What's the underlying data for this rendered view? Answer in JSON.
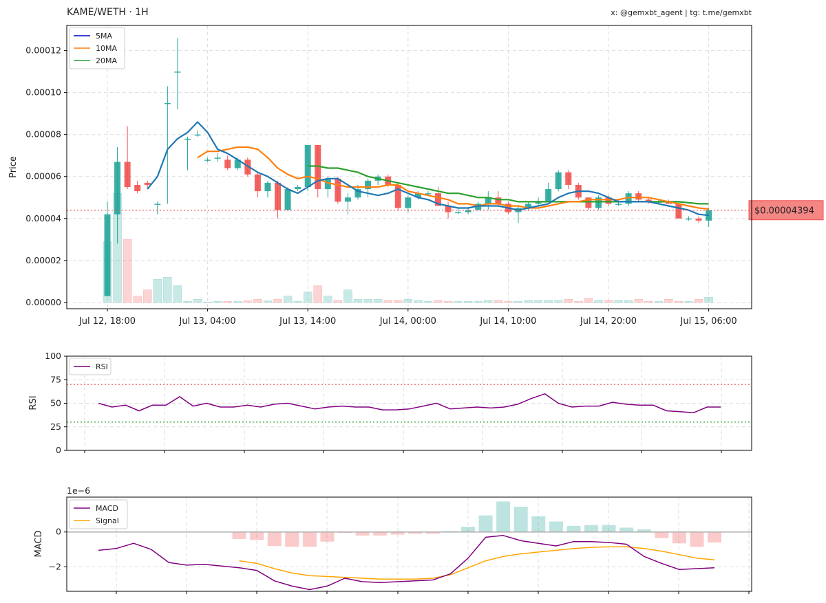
{
  "header": {
    "title": "KAME/WETH · 1H",
    "credits": "x: @gemxbt_agent | tg: t.me/gemxbt"
  },
  "colors": {
    "up": "#26a69a",
    "down": "#ef5350",
    "ma5": "#1f77b4",
    "ma10": "#ff7f0e",
    "ma20": "#2ca02c",
    "rsi": "#800080",
    "macd": "#800080",
    "signal": "#ffa500",
    "last_price_line": "#ef5350"
  },
  "chart_data": [
    {
      "type": "candlestick",
      "ylabel": "Price",
      "ylim": [
        -3e-06,
        0.000132
      ],
      "yticks": [
        0,
        2e-05,
        4e-05,
        6e-05,
        8e-05,
        0.0001,
        0.00012
      ],
      "ytick_labels": [
        "0.00000",
        "0.00002",
        "0.00004",
        "0.00006",
        "0.00008",
        "0.00010",
        "0.00012"
      ],
      "xtick_labels": [
        "Jul 12, 18:00",
        "Jul 13, 04:00",
        "Jul 13, 14:00",
        "Jul 14, 00:00",
        "Jul 14, 10:00",
        "Jul 14, 20:00",
        "Jul 15, 06:00"
      ],
      "xtick_positions": [
        0,
        10,
        20,
        30,
        40,
        50,
        60
      ],
      "grid": true,
      "legend": {
        "position": "top-left",
        "entries": [
          "5MA",
          "10MA",
          "20MA"
        ]
      },
      "last_price": 4.394e-05,
      "last_price_label": "$0.00004394",
      "candles": {
        "open": [
          3e-06,
          4.2e-05,
          6.7e-05,
          5.6e-05,
          5.7e-05,
          4.7e-05,
          9.5e-05,
          0.00011,
          7.8e-05,
          8e-05,
          6.8e-05,
          6.9e-05,
          6.8e-05,
          6.4e-05,
          6.8e-05,
          6.1e-05,
          5.3e-05,
          5.7e-05,
          4.4e-05,
          5.4e-05,
          5.5e-05,
          7.5e-05,
          5.4e-05,
          5.9e-05,
          4.8e-05,
          5e-05,
          5.4e-05,
          5.8e-05,
          6e-05,
          5.6e-05,
          4.5e-05,
          5e-05,
          5.2e-05,
          5.2e-05,
          4.6e-05,
          4.3e-05,
          4.3e-05,
          4.4e-05,
          4.7e-05,
          5e-05,
          4.7e-05,
          4.3e-05,
          4.5e-05,
          4.7e-05,
          4.8e-05,
          5.4e-05,
          6.2e-05,
          5.6e-05,
          5e-05,
          4.5e-05,
          5e-05,
          4.7e-05,
          4.7e-05,
          5.2e-05,
          4.9e-05,
          4.8e-05,
          4.8e-05,
          4.7e-05,
          4e-05,
          4e-05,
          3.9e-05
        ],
        "close": [
          4.2e-05,
          6.7e-05,
          5.5e-05,
          5.3e-05,
          5.6e-05,
          4.7e-05,
          9.5e-05,
          0.00011,
          7.8e-05,
          8e-05,
          6.8e-05,
          6.9e-05,
          6.4e-05,
          6.8e-05,
          6.1e-05,
          5.3e-05,
          5.7e-05,
          4.4e-05,
          5.4e-05,
          5.5e-05,
          7.5e-05,
          5.4e-05,
          5.9e-05,
          4.8e-05,
          5e-05,
          5.4e-05,
          5.8e-05,
          6e-05,
          5.6e-05,
          4.5e-05,
          5e-05,
          5.2e-05,
          5.2e-05,
          4.6e-05,
          4.3e-05,
          4.3e-05,
          4.4e-05,
          4.7e-05,
          5e-05,
          4.7e-05,
          4.3e-05,
          4.5e-05,
          4.7e-05,
          4.8e-05,
          5.4e-05,
          6.2e-05,
          5.6e-05,
          5e-05,
          4.5e-05,
          5e-05,
          4.7e-05,
          4.7e-05,
          5.2e-05,
          4.9e-05,
          4.8e-05,
          4.8e-05,
          4.7e-05,
          4e-05,
          4e-05,
          3.9e-05,
          4.4e-05
        ],
        "high": [
          4.8e-05,
          7.4e-05,
          8.4e-05,
          5.8e-05,
          5.8e-05,
          4.8e-05,
          0.000103,
          0.000126,
          7.9e-05,
          8.2e-05,
          6.9e-05,
          7.1e-05,
          7e-05,
          6.9e-05,
          6.9e-05,
          6.2e-05,
          5.8e-05,
          5.8e-05,
          5.5e-05,
          5.6e-05,
          7.5e-05,
          7.5e-05,
          6e-05,
          6e-05,
          5.2e-05,
          5.6e-05,
          5.9e-05,
          6.1e-05,
          6.1e-05,
          5.7e-05,
          5.1e-05,
          5.3e-05,
          5.3e-05,
          5.5e-05,
          4.8e-05,
          4.5e-05,
          4.5e-05,
          4.8e-05,
          5.3e-05,
          5.3e-05,
          4.8e-05,
          4.6e-05,
          4.8e-05,
          5e-05,
          5.7e-05,
          6.3e-05,
          6.3e-05,
          5.7e-05,
          5e-05,
          5.1e-05,
          5.1e-05,
          4.9e-05,
          5.3e-05,
          5.3e-05,
          5e-05,
          4.9e-05,
          4.9e-05,
          4.8e-05,
          4.1e-05,
          4.1e-05,
          4.5e-05
        ],
        "low": [
          3e-06,
          2.8e-05,
          5.4e-05,
          5.2e-05,
          5.4e-05,
          4.2e-05,
          4.7e-05,
          9.2e-05,
          6.3e-05,
          7.9e-05,
          6.7e-05,
          6.7e-05,
          6.3e-05,
          6.3e-05,
          6e-05,
          5e-05,
          5e-05,
          4e-05,
          4.4e-05,
          5.3e-05,
          5.3e-05,
          5e-05,
          5e-05,
          4.7e-05,
          4.2e-05,
          4.9e-05,
          5e-05,
          5.6e-05,
          5.5e-05,
          4.4e-05,
          4.3e-05,
          4.9e-05,
          5.1e-05,
          4.6e-05,
          4e-05,
          4.2e-05,
          4.2e-05,
          4.4e-05,
          4.4e-05,
          4.6e-05,
          4.2e-05,
          3.8e-05,
          4.4e-05,
          4.6e-05,
          4.8e-05,
          5.3e-05,
          5.4e-05,
          4.9e-05,
          4.4e-05,
          4.4e-05,
          4.6e-05,
          4.6e-05,
          4.6e-05,
          4.8e-05,
          4.7e-05,
          4.7e-05,
          4.7e-05,
          4e-05,
          3.9e-05,
          3.8e-05,
          3.6e-05
        ]
      },
      "volume": [
        2.9e-05,
        5.2e-05,
        3e-05,
        3e-06,
        6e-06,
        1.1e-05,
        1.2e-05,
        8e-06,
        5e-07,
        1.5e-06,
        2e-07,
        5e-07,
        5e-07,
        5e-07,
        8e-07,
        1.5e-06,
        8e-07,
        1.5e-06,
        3e-06,
        5e-07,
        5e-06,
        8e-06,
        3e-06,
        1e-06,
        6e-06,
        1.5e-06,
        1.5e-06,
        1.5e-06,
        1e-06,
        1e-06,
        1.5e-06,
        1e-06,
        5e-07,
        1e-06,
        5e-07,
        5e-07,
        5e-07,
        5e-07,
        1e-06,
        1e-06,
        5e-07,
        5e-07,
        1e-06,
        1e-06,
        1e-06,
        1e-06,
        1.5e-06,
        5e-07,
        2e-06,
        1e-06,
        1e-06,
        1e-06,
        1e-06,
        1.5e-06,
        5e-07,
        5e-07,
        1.5e-06,
        5e-07,
        5e-07,
        1.5e-06,
        2.5e-06
      ],
      "ma5": [
        null,
        null,
        null,
        null,
        5.4e-05,
        6e-05,
        7.3e-05,
        7.8e-05,
        8.1e-05,
        8.6e-05,
        8.1e-05,
        7.3e-05,
        7.1e-05,
        6.8e-05,
        6.5e-05,
        6.2e-05,
        6e-05,
        5.7e-05,
        5.4e-05,
        5.2e-05,
        5.5e-05,
        5.8e-05,
        5.9e-05,
        5.9e-05,
        5.6e-05,
        5.3e-05,
        5.2e-05,
        5.1e-05,
        5.2e-05,
        5.4e-05,
        5.2e-05,
        5e-05,
        4.9e-05,
        4.7e-05,
        4.6e-05,
        4.5e-05,
        4.5e-05,
        4.6e-05,
        4.6e-05,
        4.6e-05,
        4.5e-05,
        4.4e-05,
        4.5e-05,
        4.6e-05,
        4.7e-05,
        5e-05,
        5.2e-05,
        5.3e-05,
        5.3e-05,
        5.2e-05,
        5e-05,
        4.8e-05,
        4.8e-05,
        4.8e-05,
        4.8e-05,
        4.7e-05,
        4.6e-05,
        4.5e-05,
        4.4e-05,
        4.2e-05,
        4.15e-05
      ],
      "ma10": [
        null,
        null,
        null,
        null,
        null,
        null,
        null,
        null,
        null,
        6.9e-05,
        7.2e-05,
        7.2e-05,
        7.3e-05,
        7.4e-05,
        7.4e-05,
        7.3e-05,
        6.9e-05,
        6.4e-05,
        6.1e-05,
        5.9e-05,
        6e-05,
        5.9e-05,
        5.7e-05,
        5.6e-05,
        5.5e-05,
        5.5e-05,
        5.5e-05,
        5.5e-05,
        5.6e-05,
        5.6e-05,
        5.3e-05,
        5.2e-05,
        5.1e-05,
        5e-05,
        4.9e-05,
        4.7e-05,
        4.7e-05,
        4.6e-05,
        4.7e-05,
        4.7e-05,
        4.6e-05,
        4.6e-05,
        4.5e-05,
        4.5e-05,
        4.6e-05,
        4.7e-05,
        4.8e-05,
        4.8e-05,
        4.9e-05,
        4.9e-05,
        4.9e-05,
        4.9e-05,
        5e-05,
        5e-05,
        5e-05,
        4.9e-05,
        4.8e-05,
        4.7e-05,
        4.6e-05,
        4.5e-05,
        4.45e-05
      ],
      "ma20": [
        null,
        null,
        null,
        null,
        null,
        null,
        null,
        null,
        null,
        null,
        null,
        null,
        null,
        null,
        null,
        null,
        null,
        null,
        null,
        null,
        6.5e-05,
        6.5e-05,
        6.4e-05,
        6.4e-05,
        6.3e-05,
        6.2e-05,
        6e-05,
        5.9e-05,
        5.8e-05,
        5.7e-05,
        5.6e-05,
        5.5e-05,
        5.4e-05,
        5.3e-05,
        5.2e-05,
        5.2e-05,
        5.1e-05,
        5e-05,
        5e-05,
        4.9e-05,
        4.9e-05,
        4.8e-05,
        4.8e-05,
        4.8e-05,
        4.8e-05,
        4.8e-05,
        4.8e-05,
        4.8e-05,
        4.8e-05,
        4.8e-05,
        4.8e-05,
        4.8e-05,
        4.8e-05,
        4.8e-05,
        4.8e-05,
        4.8e-05,
        4.8e-05,
        4.8e-05,
        4.75e-05,
        4.7e-05,
        4.7e-05
      ]
    },
    {
      "type": "line",
      "ylabel": "RSI",
      "ylim": [
        0,
        100
      ],
      "yticks": [
        0,
        25,
        50,
        75,
        100
      ],
      "overbought": 70,
      "oversold": 30,
      "grid": true,
      "legend": {
        "position": "top-left",
        "entries": [
          "RSI"
        ]
      },
      "series": [
        {
          "name": "RSI",
          "values": [
            50,
            46,
            48,
            42,
            48,
            48,
            57,
            47,
            50,
            46,
            46,
            48,
            46,
            49,
            50,
            47,
            44,
            46,
            47,
            46,
            46,
            43,
            43,
            44,
            47,
            50,
            44,
            45,
            46,
            45,
            46,
            49,
            55,
            60,
            50,
            46,
            47,
            47,
            51,
            49,
            48,
            48,
            42,
            41,
            40,
            46,
            46
          ]
        }
      ]
    },
    {
      "type": "line",
      "ylabel": "MACD",
      "scale_label": "1e−6",
      "ylim": [
        -3.4,
        2.0
      ],
      "yticks": [
        -2,
        0
      ],
      "grid": true,
      "legend": {
        "position": "top-left",
        "entries": [
          "MACD",
          "Signal"
        ]
      },
      "series": [
        {
          "name": "MACD",
          "values": [
            -1.05,
            -0.95,
            -0.65,
            -1.0,
            -1.75,
            -1.9,
            -1.85,
            -1.95,
            -2.05,
            -2.2,
            -2.8,
            -3.1,
            -3.3,
            -3.1,
            -2.65,
            -2.85,
            -2.9,
            -2.85,
            -2.8,
            -2.75,
            -2.4,
            -1.5,
            -0.3,
            -0.2,
            -0.5,
            -0.65,
            -0.8,
            -0.55,
            -0.55,
            -0.6,
            -0.7,
            -1.4,
            -1.8,
            -2.15,
            -2.1,
            -2.05
          ]
        },
        {
          "name": "Signal",
          "values": [
            null,
            null,
            null,
            null,
            null,
            null,
            null,
            null,
            -1.65,
            -1.8,
            -2.1,
            -2.35,
            -2.5,
            -2.55,
            -2.6,
            -2.65,
            -2.7,
            -2.7,
            -2.7,
            -2.65,
            -2.45,
            -2.05,
            -1.65,
            -1.4,
            -1.25,
            -1.15,
            -1.05,
            -0.95,
            -0.88,
            -0.85,
            -0.85,
            -0.95,
            -1.1,
            -1.3,
            -1.5,
            -1.6
          ]
        },
        {
          "name": "Histogram",
          "values": [
            null,
            null,
            null,
            null,
            null,
            null,
            null,
            null,
            -0.4,
            -0.45,
            -0.8,
            -0.85,
            -0.85,
            -0.55,
            -0.05,
            -0.2,
            -0.2,
            -0.15,
            -0.1,
            -0.1,
            0.05,
            0.3,
            0.95,
            1.75,
            1.45,
            0.9,
            0.6,
            0.35,
            0.4,
            0.4,
            0.25,
            0.15,
            -0.35,
            -0.65,
            -0.85,
            -0.6
          ]
        }
      ]
    }
  ]
}
